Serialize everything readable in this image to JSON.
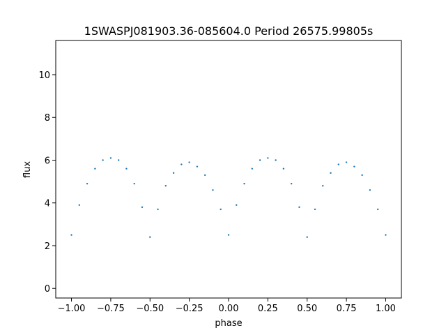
{
  "chart_data": {
    "type": "scatter",
    "title": "1SWASPJ081903.36-085604.0 Period 26575.99805s",
    "xlabel": "phase",
    "ylabel": "flux",
    "xlim": [
      -1.1,
      1.1
    ],
    "ylim": [
      -0.45,
      11.6
    ],
    "xticks": [
      -1.0,
      -0.75,
      -0.5,
      -0.25,
      0.0,
      0.25,
      0.5,
      0.75,
      1.0
    ],
    "xtick_labels": [
      "−1.00",
      "−0.75",
      "−0.50",
      "−0.25",
      "0.00",
      "0.25",
      "0.50",
      "0.75",
      "1.00"
    ],
    "yticks": [
      0,
      2,
      4,
      6,
      8,
      10
    ],
    "ytick_labels": [
      "0",
      "2",
      "4",
      "6",
      "8",
      "10"
    ],
    "grid": false,
    "marker_color": "#1f77b4",
    "series": [
      {
        "x": [
          -1.0,
          -0.95,
          -0.9,
          -0.85,
          -0.8,
          -0.75,
          -0.7,
          -0.65,
          -0.6,
          -0.55,
          -0.5,
          -0.45,
          -0.4,
          -0.35,
          -0.3,
          -0.25,
          -0.2,
          -0.15,
          -0.1,
          -0.05,
          0.0,
          0.05,
          0.1,
          0.15,
          0.2,
          0.25,
          0.3,
          0.35,
          0.4,
          0.45,
          0.5,
          0.55,
          0.6,
          0.65,
          0.7,
          0.75,
          0.8,
          0.85,
          0.9,
          0.95,
          1.0
        ],
        "y": [
          2.5,
          3.9,
          4.9,
          5.6,
          6.0,
          6.1,
          6.0,
          5.6,
          4.9,
          3.8,
          2.4,
          3.7,
          4.8,
          5.4,
          5.8,
          5.9,
          5.7,
          5.3,
          4.6,
          3.7,
          2.5,
          3.9,
          4.9,
          5.6,
          6.0,
          6.1,
          6.0,
          5.6,
          4.9,
          3.8,
          2.4,
          3.7,
          4.8,
          5.4,
          5.8,
          5.9,
          5.7,
          5.3,
          4.6,
          3.7,
          2.5
        ]
      }
    ]
  }
}
